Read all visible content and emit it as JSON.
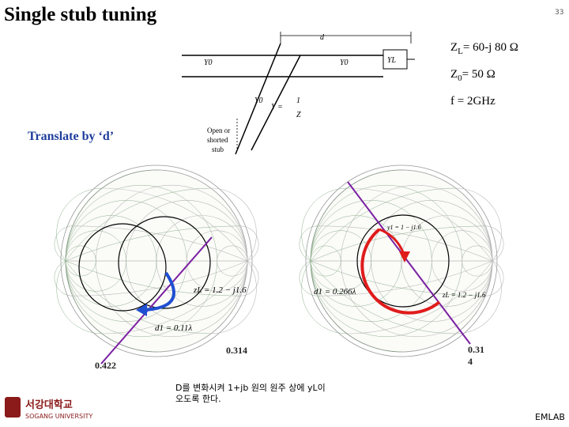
{
  "header": {
    "title": "Single stub tuning",
    "page_number": "33"
  },
  "parameters": {
    "zl": {
      "symbol": "Z",
      "sub": "L",
      "rest": "= 60-j 80 Ω"
    },
    "z0": {
      "symbol": "Z",
      "sub": "0",
      "rest": "= 50 Ω"
    },
    "freq": "f = 2GHz"
  },
  "circuit": {
    "d": "d",
    "y0_left": "Y0",
    "y0_right": "Y0",
    "yl": "YL",
    "y0_stub": "Y0",
    "y_eq": "Y =",
    "y_num": "1",
    "y_den": "Z",
    "stub": [
      "Open or",
      "shorted",
      "stub"
    ]
  },
  "translate_note": "Translate by ‘d’",
  "left_chart": {
    "zl": "zL = 1.2 − j1.6",
    "d1": "d1 = 0.11λ",
    "wtg_start": "0.422",
    "wtg_end": "0.314"
  },
  "right_chart": {
    "y1": "y1 = 1 − j1.6",
    "d1": "d1 = 0.266λ",
    "zl": "zL = 1.2 − j1.6",
    "wtg_line1": "0.31",
    "wtg_line2": "4"
  },
  "note": [
    "D를 변화시켜 1+jb 원의 원주 상에 yL이",
    "오도록 한다."
  ],
  "footer": {
    "logo_kr": "서강대학교",
    "logo_en": "SOGANG UNIVERSITY",
    "lab": "EMLAB"
  }
}
